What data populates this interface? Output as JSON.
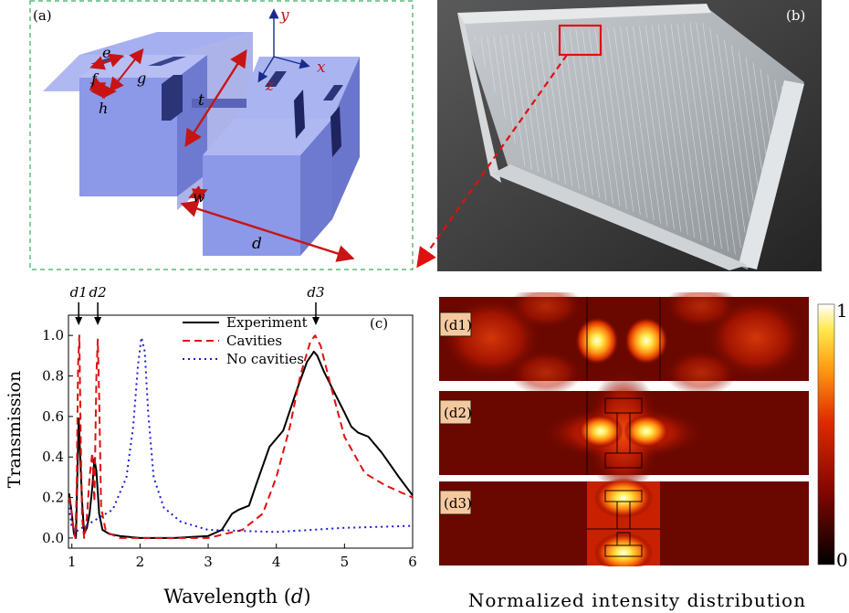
{
  "panel_a": {
    "label": "(a)",
    "axes": {
      "y": "y",
      "x": "x",
      "z": "z"
    },
    "dims": {
      "e": "e",
      "f": "f",
      "g": "g",
      "h": "h",
      "t": "t",
      "w": "w",
      "d": "d"
    }
  },
  "panel_b": {
    "label": "(b)"
  },
  "panel_c": {
    "label": "(c)",
    "markers": [
      "d1",
      "d2",
      "d3"
    ],
    "xlabel_text": "Wavelength (",
    "xlabel_var": "d",
    "xlabel_close": ")"
  },
  "panel_d": {
    "caption": "Normalized intensity distribution",
    "maps": [
      "(d1)",
      "(d2)",
      "(d3)"
    ],
    "colorbar_max": "1",
    "colorbar_min": "0"
  },
  "colors": {
    "experiment": "#000000",
    "cavities": "#e01010",
    "no_cavities": "#1a1ad8",
    "block": "#8c98e8",
    "dashed_frame": "#3caa5a"
  },
  "chart_data": {
    "type": "line",
    "title": "",
    "xlabel": "Wavelength (d)",
    "ylabel": "Transmission",
    "xlim": [
      0.95,
      6.0
    ],
    "ylim": [
      -0.05,
      1.1
    ],
    "xticks": [
      1,
      2,
      3,
      4,
      5,
      6
    ],
    "yticks": [
      "0.0",
      "0.2",
      "0.4",
      "0.6",
      "0.8",
      "1.0"
    ],
    "yticks_values": [
      0.0,
      0.2,
      0.4,
      0.6,
      0.8,
      1.0
    ],
    "legend": [
      "Experiment",
      "Cavities",
      "No cavities"
    ],
    "legend_position": "top-right",
    "series": [
      {
        "name": "Experiment",
        "style": "solid",
        "x": [
          0.96,
          1.0,
          1.03,
          1.06,
          1.08,
          1.1,
          1.12,
          1.15,
          1.18,
          1.22,
          1.26,
          1.3,
          1.33,
          1.36,
          1.4,
          1.45,
          1.55,
          1.7,
          2.0,
          2.5,
          3.0,
          3.2,
          3.35,
          3.45,
          3.6,
          3.7,
          3.9,
          4.1,
          4.3,
          4.45,
          4.55,
          4.6,
          4.7,
          4.85,
          5.0,
          5.1,
          5.2,
          5.35,
          5.55,
          5.8,
          6.0
        ],
        "y": [
          0.22,
          0.12,
          0.02,
          0.0,
          0.3,
          0.59,
          0.42,
          0.18,
          0.02,
          0.05,
          0.12,
          0.25,
          0.39,
          0.33,
          0.12,
          0.04,
          0.02,
          0.01,
          0.0,
          0.0,
          0.01,
          0.04,
          0.12,
          0.14,
          0.16,
          0.26,
          0.45,
          0.53,
          0.73,
          0.87,
          0.92,
          0.9,
          0.82,
          0.72,
          0.62,
          0.55,
          0.52,
          0.5,
          0.42,
          0.3,
          0.21
        ]
      },
      {
        "name": "Cavities",
        "style": "dashed",
        "x": [
          0.96,
          1.0,
          1.02,
          1.05,
          1.07,
          1.09,
          1.11,
          1.13,
          1.15,
          1.18,
          1.22,
          1.26,
          1.3,
          1.33,
          1.36,
          1.38,
          1.4,
          1.43,
          1.5,
          1.7,
          2.0,
          2.5,
          3.0,
          3.5,
          3.8,
          4.0,
          4.2,
          4.35,
          4.5,
          4.57,
          4.65,
          4.8,
          5.0,
          5.3,
          5.6,
          6.0
        ],
        "y": [
          0.2,
          0.12,
          0.05,
          0.0,
          0.25,
          0.85,
          1.0,
          0.5,
          0.1,
          0.0,
          0.1,
          0.3,
          0.42,
          0.18,
          0.8,
          0.98,
          0.7,
          0.15,
          0.03,
          0.0,
          0.0,
          0.0,
          0.0,
          0.04,
          0.12,
          0.3,
          0.55,
          0.8,
          0.97,
          1.0,
          0.95,
          0.75,
          0.5,
          0.32,
          0.26,
          0.2
        ]
      },
      {
        "name": "No cavities",
        "style": "dotted",
        "x": [
          0.96,
          1.0,
          1.05,
          1.1,
          1.2,
          1.4,
          1.6,
          1.8,
          1.9,
          1.97,
          2.02,
          2.07,
          2.12,
          2.2,
          2.35,
          2.6,
          3.0,
          4.0,
          5.0,
          6.0
        ],
        "y": [
          0.15,
          0.05,
          0.03,
          0.04,
          0.06,
          0.1,
          0.14,
          0.3,
          0.55,
          0.85,
          0.99,
          0.92,
          0.62,
          0.3,
          0.15,
          0.08,
          0.04,
          0.03,
          0.05,
          0.06
        ]
      }
    ]
  }
}
